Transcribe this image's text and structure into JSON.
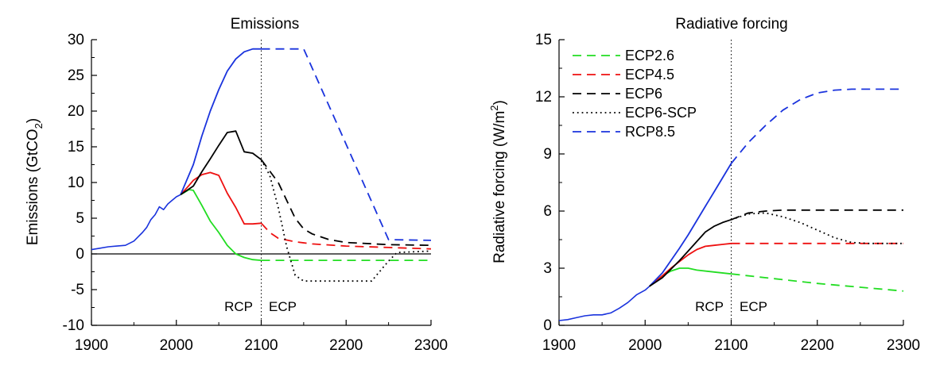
{
  "chart_data": [
    {
      "type": "line",
      "title": "Emissions",
      "ylabel": "Emissions (GtCO",
      "ylabel_sub": "2",
      "ylabel_close": ")",
      "xlim": [
        1900,
        2300
      ],
      "ylim": [
        -10,
        30
      ],
      "xticks": [
        1900,
        2000,
        2100,
        2200,
        2300
      ],
      "yticks": [
        -10,
        -5,
        0,
        5,
        10,
        15,
        20,
        25,
        30
      ],
      "zero_line": true,
      "divider_x": 2100,
      "region_labels": {
        "left": "RCP",
        "right": "ECP"
      },
      "history": {
        "x": [
          1900,
          1910,
          1920,
          1930,
          1940,
          1950,
          1955,
          1960,
          1965,
          1970,
          1975,
          1980,
          1985,
          1990,
          1995,
          2000,
          2005
        ],
        "y": [
          0.6,
          0.8,
          1.0,
          1.1,
          1.2,
          1.8,
          2.4,
          3.0,
          3.7,
          4.8,
          5.5,
          6.6,
          6.2,
          7.0,
          7.5,
          8.0,
          8.3
        ]
      },
      "series": [
        {
          "name": "ECP2.6",
          "color": "#22dd22",
          "x": [
            2005,
            2015,
            2020,
            2030,
            2040,
            2050,
            2060,
            2070,
            2080,
            2090,
            2100
          ],
          "y": [
            8.3,
            9.0,
            8.9,
            6.8,
            4.6,
            3.0,
            1.2,
            0.0,
            -0.5,
            -0.8,
            -0.9
          ],
          "ext_x": [
            2100,
            2300
          ],
          "ext_y": [
            -0.9,
            -0.9
          ]
        },
        {
          "name": "ECP4.5",
          "color": "#ee1111",
          "x": [
            2005,
            2015,
            2020,
            2030,
            2040,
            2050,
            2060,
            2070,
            2080,
            2090,
            2100
          ],
          "y": [
            8.3,
            9.6,
            10.3,
            11.1,
            11.4,
            11.0,
            8.5,
            6.5,
            4.2,
            4.2,
            4.3
          ],
          "ext_x": [
            2100,
            2110,
            2120,
            2140,
            2160,
            2200,
            2250,
            2300
          ],
          "ext_y": [
            4.3,
            3.0,
            2.2,
            1.7,
            1.4,
            1.1,
            0.9,
            0.7
          ]
        },
        {
          "name": "ECP6",
          "color": "#000000",
          "x": [
            2005,
            2020,
            2030,
            2040,
            2050,
            2060,
            2070,
            2080,
            2090,
            2100
          ],
          "y": [
            8.3,
            9.5,
            11.5,
            13.3,
            15.2,
            17.0,
            17.2,
            14.3,
            14.1,
            13.2
          ],
          "ext_x": [
            2100,
            2110,
            2120,
            2130,
            2140,
            2150,
            2160,
            2180,
            2200,
            2250,
            2300
          ],
          "ext_y": [
            13.2,
            11.6,
            10.0,
            7.5,
            5.0,
            3.5,
            2.8,
            2.0,
            1.6,
            1.3,
            1.2
          ]
        },
        {
          "name": "ECP6-SCP",
          "color": "#000000",
          "dotted_only": true,
          "ext_x": [
            2100,
            2110,
            2120,
            2130,
            2140,
            2150,
            2230,
            2250,
            2260,
            2300
          ],
          "ext_y": [
            13.2,
            11.0,
            6.5,
            1.0,
            -3.0,
            -3.8,
            -3.8,
            -1.0,
            0.2,
            0.4
          ]
        },
        {
          "name": "RCP8.5",
          "color": "#1a33dd",
          "x": [
            2005,
            2020,
            2030,
            2040,
            2050,
            2060,
            2070,
            2080,
            2090,
            2100
          ],
          "y": [
            8.3,
            12.5,
            16.5,
            20.0,
            23.0,
            25.6,
            27.3,
            28.3,
            28.7,
            28.7
          ],
          "ext_x": [
            2100,
            2150,
            2250,
            2300
          ],
          "ext_y": [
            28.7,
            28.7,
            2.0,
            1.9
          ]
        }
      ]
    },
    {
      "type": "line",
      "title": "Radiative forcing",
      "ylabel": "Radiative forcing (W/m",
      "ylabel_sup": "2",
      "ylabel_close": ")",
      "xlim": [
        1900,
        2300
      ],
      "ylim": [
        0,
        15
      ],
      "xticks": [
        1900,
        2000,
        2100,
        2200,
        2300
      ],
      "yticks": [
        0,
        3,
        6,
        9,
        12,
        15
      ],
      "divider_x": 2100,
      "region_labels": {
        "left": "RCP",
        "right": "ECP"
      },
      "legend": [
        {
          "name": "ECP2.6",
          "color": "#22dd22",
          "style": "dashed"
        },
        {
          "name": "ECP4.5",
          "color": "#ee1111",
          "style": "dashed"
        },
        {
          "name": "ECP6",
          "color": "#000000",
          "style": "dashed"
        },
        {
          "name": "ECP6-SCP",
          "color": "#000000",
          "style": "dotted"
        },
        {
          "name": "RCP8.5",
          "color": "#1a33dd",
          "style": "dashed"
        }
      ],
      "history": {
        "x": [
          1900,
          1910,
          1920,
          1930,
          1940,
          1950,
          1960,
          1970,
          1980,
          1990,
          2000,
          2005
        ],
        "y": [
          0.25,
          0.3,
          0.4,
          0.5,
          0.55,
          0.55,
          0.65,
          0.9,
          1.2,
          1.6,
          1.85,
          2.05
        ]
      },
      "series": [
        {
          "name": "ECP2.6",
          "color": "#22dd22",
          "x": [
            2005,
            2020,
            2030,
            2040,
            2050,
            2060,
            2080,
            2100
          ],
          "y": [
            2.05,
            2.6,
            2.85,
            3.0,
            3.0,
            2.9,
            2.8,
            2.7
          ],
          "ext_x": [
            2100,
            2150,
            2200,
            2250,
            2300
          ],
          "ext_y": [
            2.7,
            2.45,
            2.2,
            2.0,
            1.8
          ]
        },
        {
          "name": "ECP4.5",
          "color": "#ee1111",
          "x": [
            2005,
            2020,
            2030,
            2040,
            2050,
            2060,
            2070,
            2080,
            2090,
            2100
          ],
          "y": [
            2.05,
            2.6,
            3.0,
            3.35,
            3.7,
            3.98,
            4.15,
            4.2,
            4.25,
            4.3
          ],
          "ext_x": [
            2100,
            2120,
            2300
          ],
          "ext_y": [
            4.3,
            4.3,
            4.3
          ]
        },
        {
          "name": "ECP6",
          "color": "#000000",
          "x": [
            2005,
            2020,
            2030,
            2040,
            2050,
            2060,
            2070,
            2080,
            2090,
            2100
          ],
          "y": [
            2.05,
            2.5,
            2.95,
            3.4,
            3.9,
            4.4,
            4.9,
            5.2,
            5.4,
            5.55
          ],
          "ext_x": [
            2100,
            2120,
            2140,
            2160,
            2200,
            2300
          ],
          "ext_y": [
            5.55,
            5.9,
            6.0,
            6.05,
            6.05,
            6.05
          ]
        },
        {
          "name": "ECP6-SCP",
          "color": "#000000",
          "dotted_only": true,
          "ext_x": [
            2100,
            2120,
            2140,
            2160,
            2180,
            2200,
            2220,
            2240,
            2260,
            2300
          ],
          "ext_y": [
            5.55,
            5.85,
            5.9,
            5.7,
            5.4,
            5.0,
            4.6,
            4.35,
            4.3,
            4.3
          ]
        },
        {
          "name": "RCP8.5",
          "color": "#1a33dd",
          "x": [
            2005,
            2020,
            2030,
            2040,
            2050,
            2060,
            2070,
            2080,
            2090,
            2100
          ],
          "y": [
            2.05,
            2.75,
            3.4,
            4.05,
            4.75,
            5.5,
            6.25,
            7.0,
            7.75,
            8.5
          ],
          "ext_x": [
            2100,
            2120,
            2140,
            2160,
            2180,
            2200,
            2220,
            2240,
            2300
          ],
          "ext_y": [
            8.5,
            9.6,
            10.5,
            11.3,
            11.85,
            12.2,
            12.35,
            12.4,
            12.4
          ]
        }
      ]
    }
  ]
}
